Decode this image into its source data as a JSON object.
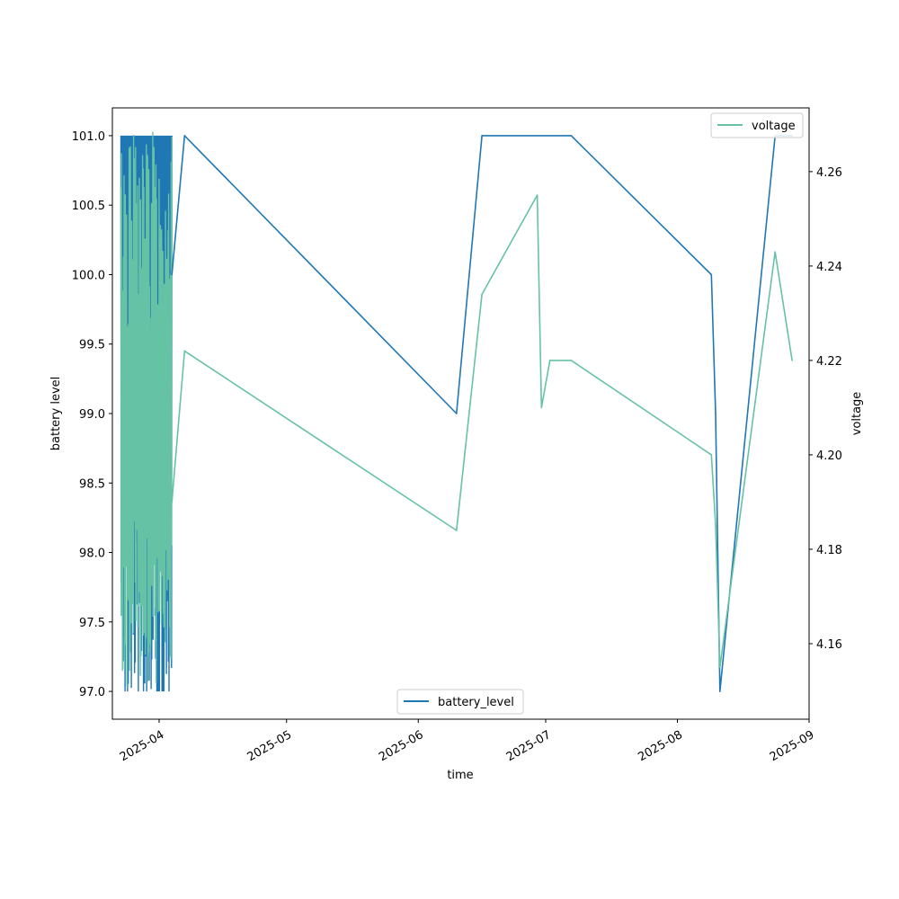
{
  "chart_data": {
    "type": "line",
    "xlabel": "time",
    "ylabel_left": "battery level",
    "ylabel_right": "voltage",
    "x_ticks": [
      "2025-04",
      "2025-05",
      "2025-06",
      "2025-07",
      "2025-08",
      "2025-09"
    ],
    "x_range": [
      "2025-03-21",
      "2025-09-01"
    ],
    "y_left_ticks": [
      "97.0",
      "97.5",
      "98.0",
      "98.5",
      "99.0",
      "99.5",
      "100.0",
      "100.5",
      "101.0"
    ],
    "y_left_range": [
      96.8,
      101.2
    ],
    "y_right_ticks": [
      "4.16",
      "4.18",
      "4.20",
      "4.22",
      "4.24",
      "4.26"
    ],
    "y_right_range": [
      4.144,
      4.2735
    ],
    "grid": false,
    "series": [
      {
        "name": "battery_level",
        "axis": "left",
        "color": "#1f77b4",
        "legend_position": "lower center",
        "dense_band": {
          "from": "2025-03-23",
          "to": "2025-04-04",
          "min": 97.0,
          "max": 101.0
        },
        "points": [
          [
            "2025-04-04",
            100.0
          ],
          [
            "2025-04-07",
            101.0
          ],
          [
            "2025-06-10",
            99.0
          ],
          [
            "2025-06-16",
            101.0
          ],
          [
            "2025-07-07",
            101.0
          ],
          [
            "2025-08-09",
            100.0
          ],
          [
            "2025-08-10",
            99.0
          ],
          [
            "2025-08-11",
            97.0
          ],
          [
            "2025-08-24",
            101.0
          ],
          [
            "2025-08-28",
            101.0
          ]
        ]
      },
      {
        "name": "voltage",
        "axis": "right",
        "color": "#66c2a5",
        "legend_position": "upper right",
        "dense_band": {
          "from": "2025-03-23",
          "to": "2025-04-04",
          "min": 4.15,
          "max": 4.269
        },
        "points": [
          [
            "2025-04-04",
            4.19
          ],
          [
            "2025-04-07",
            4.222
          ],
          [
            "2025-06-10",
            4.184
          ],
          [
            "2025-06-16",
            4.234
          ],
          [
            "2025-06-29",
            4.255
          ],
          [
            "2025-06-30",
            4.21
          ],
          [
            "2025-07-02",
            4.22
          ],
          [
            "2025-07-07",
            4.22
          ],
          [
            "2025-08-09",
            4.2
          ],
          [
            "2025-08-10",
            4.185
          ],
          [
            "2025-08-11",
            4.155
          ],
          [
            "2025-08-24",
            4.243
          ],
          [
            "2025-08-28",
            4.22
          ]
        ]
      }
    ]
  }
}
